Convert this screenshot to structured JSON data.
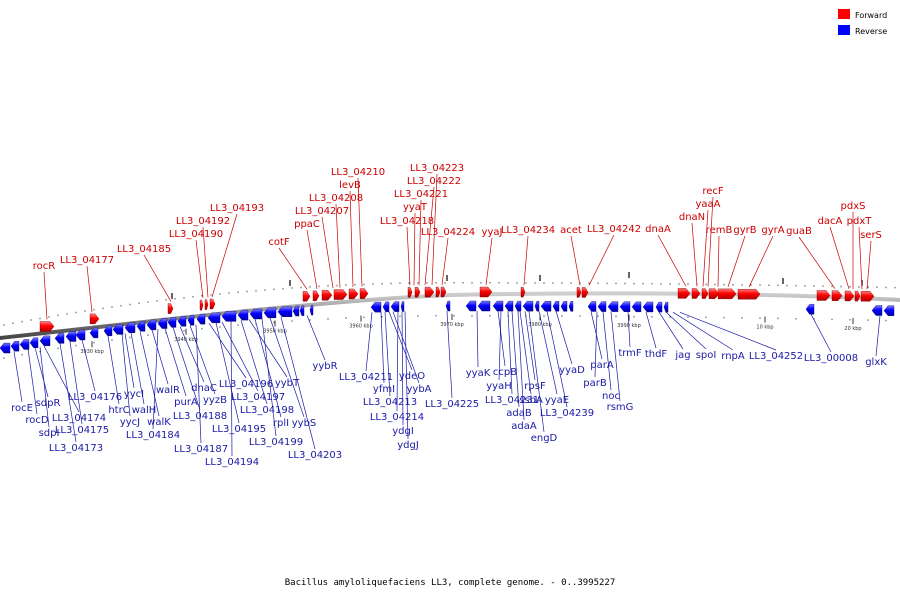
{
  "legend": [
    {
      "label": "Forward",
      "color": "#ff0000"
    },
    {
      "label": "Reverse",
      "color": "#0000ff"
    }
  ],
  "caption": "Bacillus amyloliquefaciens LL3, complete genome. - 0..3995227",
  "ticks": [
    "3930 kbp",
    "3940 kbp",
    "3950 kbp",
    "3960 kbp",
    "3970 kbp",
    "3980 kbp",
    "3990 kbp",
    "10 kbp",
    "20 kbp"
  ],
  "forward_labels": [
    "rocR",
    "LL3_04177",
    "LL3_04185",
    "LL3_04190",
    "LL3_04192",
    "LL3_04193",
    "cotF",
    "ppaC",
    "LL3_04207",
    "LL3_04208",
    "levB",
    "LL3_04210",
    "LL3_04218",
    "yyaT",
    "LL3_04221",
    "LL3_04222",
    "LL3_04223",
    "LL3_04224",
    "yyaJ",
    "LL3_04234",
    "acet",
    "LL3_04242",
    "dnaA",
    "dnaN",
    "yaaA",
    "recF",
    "remB",
    "gyrB",
    "gyrA",
    "guaB",
    "dacA",
    "pdxS",
    "pdxT",
    "serS"
  ],
  "reverse_labels": [
    "rocE",
    "rocD",
    "sdpR",
    "sdpI",
    "LL3_04174",
    "LL3_04173",
    "LL3_04175",
    "LL3_04176",
    "htrC",
    "yycJ",
    "yycI",
    "walH",
    "walK",
    "walR",
    "LL3_04184",
    "purA",
    "LL3_04188",
    "dnaC",
    "yyzB",
    "LL3_04187",
    "LL3_04196",
    "LL3_04195",
    "LL3_04197",
    "LL3_04194",
    "LL3_04198",
    "yybT",
    "rplI",
    "LL3_04199",
    "yybS",
    "LL3_04203",
    "yybR",
    "LL3_04211",
    "yfmI",
    "LL3_04213",
    "ydeO",
    "yybA",
    "LL3_04214",
    "ydgI",
    "ydgJ",
    "LL3_04225",
    "yyaK",
    "ccpB",
    "yyaH",
    "LL3_04231",
    "adaB",
    "adaA",
    "ssbA",
    "rpsF",
    "engD",
    "yyaE",
    "LL3_04239",
    "yyaD",
    "parA",
    "parB",
    "noc",
    "rsmG",
    "trmF",
    "thdF",
    "jag",
    "spoI",
    "rnpA",
    "LL3_04252",
    "LL3_00008",
    "glxK"
  ]
}
